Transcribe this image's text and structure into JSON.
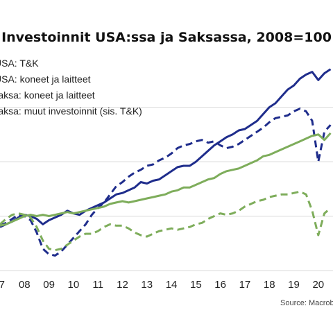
{
  "chart_data": {
    "type": "line",
    "title": "Investoinnit USA:ssa ja Saksassa, 2008=100",
    "source": "Source: Macrob",
    "x_tick_labels": [
      "7",
      "08",
      "09",
      "10",
      "11",
      "12",
      "13",
      "14",
      "15",
      "16",
      "17",
      "18",
      "19",
      "20"
    ],
    "x_ticks": [
      2007,
      2008,
      2009,
      2010,
      2011,
      2012,
      2013,
      2014,
      2015,
      2016,
      2017,
      2018,
      2019,
      2020
    ],
    "xlim": [
      2007.0,
      2020.6
    ],
    "ylim": [
      80,
      158
    ],
    "grid": true,
    "legend_position": "top-left",
    "series": [
      {
        "name": "USA: T&K",
        "color": "#1f2d8c",
        "dash": "solid",
        "x": [
          2007.0,
          2007.25,
          2007.5,
          2007.75,
          2008.0,
          2008.25,
          2008.5,
          2008.75,
          2009.0,
          2009.25,
          2009.5,
          2009.75,
          2010.0,
          2010.25,
          2010.5,
          2010.75,
          2011.0,
          2011.25,
          2011.5,
          2011.75,
          2012.0,
          2012.25,
          2012.5,
          2012.75,
          2013.0,
          2013.25,
          2013.5,
          2013.75,
          2014.0,
          2014.25,
          2014.5,
          2014.75,
          2015.0,
          2015.25,
          2015.5,
          2015.75,
          2016.0,
          2016.25,
          2016.5,
          2016.75,
          2017.0,
          2017.25,
          2017.5,
          2017.75,
          2018.0,
          2018.25,
          2018.5,
          2018.75,
          2019.0,
          2019.25,
          2019.5,
          2019.75,
          2020.0,
          2020.25,
          2020.5
        ],
        "y": [
          96.0,
          97.0,
          98.0,
          99.5,
          100.5,
          100.0,
          99.0,
          97.0,
          98.5,
          99.5,
          100.5,
          102.0,
          101.0,
          100.5,
          102.0,
          103.0,
          104.0,
          105.0,
          106.5,
          108.0,
          108.5,
          109.5,
          110.5,
          112.5,
          112.0,
          113.0,
          113.5,
          115.0,
          116.5,
          118.0,
          118.5,
          118.5,
          120.0,
          122.0,
          124.0,
          126.0,
          127.5,
          129.0,
          130.0,
          131.5,
          132.0,
          133.5,
          135.0,
          137.5,
          140.0,
          141.5,
          144.0,
          146.5,
          148.0,
          150.5,
          152.0,
          153.0,
          150.0,
          152.5,
          154.0
        ]
      },
      {
        "name": "USA: koneet ja laitteet",
        "color": "#1f2d8c",
        "dash": "dashed",
        "x": [
          2007.0,
          2007.25,
          2007.5,
          2007.75,
          2008.0,
          2008.25,
          2008.5,
          2008.75,
          2009.0,
          2009.25,
          2009.5,
          2009.75,
          2010.0,
          2010.25,
          2010.5,
          2010.75,
          2011.0,
          2011.25,
          2011.5,
          2011.75,
          2012.0,
          2012.25,
          2012.5,
          2012.75,
          2013.0,
          2013.25,
          2013.5,
          2013.75,
          2014.0,
          2014.25,
          2014.5,
          2014.75,
          2015.0,
          2015.25,
          2015.5,
          2015.75,
          2016.0,
          2016.25,
          2016.5,
          2016.75,
          2017.0,
          2017.25,
          2017.5,
          2017.75,
          2018.0,
          2018.25,
          2018.5,
          2018.75,
          2019.0,
          2019.25,
          2019.5,
          2019.75,
          2020.0,
          2020.25,
          2020.5
        ],
        "y": [
          96.5,
          97.5,
          99.0,
          100.5,
          100.0,
          98.5,
          94.0,
          88.0,
          86.0,
          85.5,
          87.0,
          89.5,
          92.0,
          94.5,
          97.0,
          100.5,
          103.0,
          105.0,
          108.0,
          111.0,
          112.5,
          114.5,
          116.0,
          117.0,
          118.5,
          119.0,
          120.5,
          121.5,
          123.0,
          125.0,
          126.0,
          126.5,
          127.5,
          128.0,
          127.0,
          127.5,
          126.0,
          125.0,
          125.5,
          126.5,
          128.0,
          129.5,
          131.0,
          132.5,
          134.5,
          136.0,
          136.5,
          137.0,
          138.5,
          139.5,
          138.5,
          135.0,
          120.0,
          131.0,
          133.5
        ]
      },
      {
        "name": "Saksa: koneet ja laitteet",
        "color": "#7ead5b",
        "dash": "solid",
        "x": [
          2007.0,
          2007.25,
          2007.5,
          2007.75,
          2008.0,
          2008.25,
          2008.5,
          2008.75,
          2009.0,
          2009.25,
          2009.5,
          2009.75,
          2010.0,
          2010.25,
          2010.5,
          2010.75,
          2011.0,
          2011.25,
          2011.5,
          2011.75,
          2012.0,
          2012.25,
          2012.5,
          2012.75,
          2013.0,
          2013.25,
          2013.5,
          2013.75,
          2014.0,
          2014.25,
          2014.5,
          2014.75,
          2015.0,
          2015.25,
          2015.5,
          2015.75,
          2016.0,
          2016.25,
          2016.5,
          2016.75,
          2017.0,
          2017.25,
          2017.5,
          2017.75,
          2018.0,
          2018.25,
          2018.5,
          2018.75,
          2019.0,
          2019.25,
          2019.5,
          2019.75,
          2020.0,
          2020.25,
          2020.5
        ],
        "y": [
          96.5,
          97.0,
          98.0,
          99.0,
          100.0,
          100.5,
          100.0,
          100.5,
          100.0,
          100.5,
          101.0,
          101.5,
          101.0,
          101.5,
          102.0,
          102.5,
          103.0,
          103.5,
          104.5,
          105.0,
          105.5,
          105.0,
          105.5,
          106.0,
          106.5,
          107.0,
          107.5,
          108.0,
          109.0,
          109.5,
          110.5,
          110.5,
          111.5,
          112.5,
          113.5,
          114.0,
          115.5,
          116.5,
          117.0,
          117.5,
          118.5,
          119.5,
          120.5,
          122.0,
          122.5,
          123.5,
          124.5,
          125.5,
          126.5,
          127.5,
          128.5,
          129.5,
          130.0,
          128.0,
          130.5
        ]
      },
      {
        "name": "Saksa: muut investoinnit (sis. T&K)",
        "color": "#7ead5b",
        "dash": "dashed",
        "x": [
          2007.0,
          2007.25,
          2007.5,
          2007.75,
          2008.0,
          2008.25,
          2008.5,
          2008.75,
          2009.0,
          2009.25,
          2009.5,
          2009.75,
          2010.0,
          2010.25,
          2010.5,
          2010.75,
          2011.0,
          2011.25,
          2011.5,
          2011.75,
          2012.0,
          2012.25,
          2012.5,
          2012.75,
          2013.0,
          2013.25,
          2013.5,
          2013.75,
          2014.0,
          2014.25,
          2014.5,
          2014.75,
          2015.0,
          2015.25,
          2015.5,
          2015.75,
          2016.0,
          2016.25,
          2016.5,
          2016.75,
          2017.0,
          2017.25,
          2017.5,
          2017.75,
          2018.0,
          2018.25,
          2018.5,
          2018.75,
          2019.0,
          2019.25,
          2019.5,
          2019.75,
          2020.0,
          2020.25,
          2020.5
        ],
        "y": [
          97.0,
          99.0,
          100.5,
          101.0,
          100.5,
          99.5,
          96.0,
          91.0,
          88.0,
          87.5,
          88.0,
          89.5,
          91.0,
          92.5,
          93.5,
          93.5,
          94.5,
          96.0,
          97.0,
          96.5,
          96.5,
          95.5,
          94.0,
          93.0,
          92.5,
          93.5,
          94.5,
          95.0,
          95.5,
          95.0,
          95.5,
          96.0,
          97.0,
          97.5,
          99.0,
          100.0,
          101.0,
          100.5,
          101.0,
          102.0,
          103.5,
          104.5,
          105.5,
          106.0,
          107.0,
          107.5,
          108.0,
          108.0,
          108.5,
          109.0,
          108.0,
          102.0,
          93.0,
          101.0,
          103.0
        ]
      }
    ]
  }
}
